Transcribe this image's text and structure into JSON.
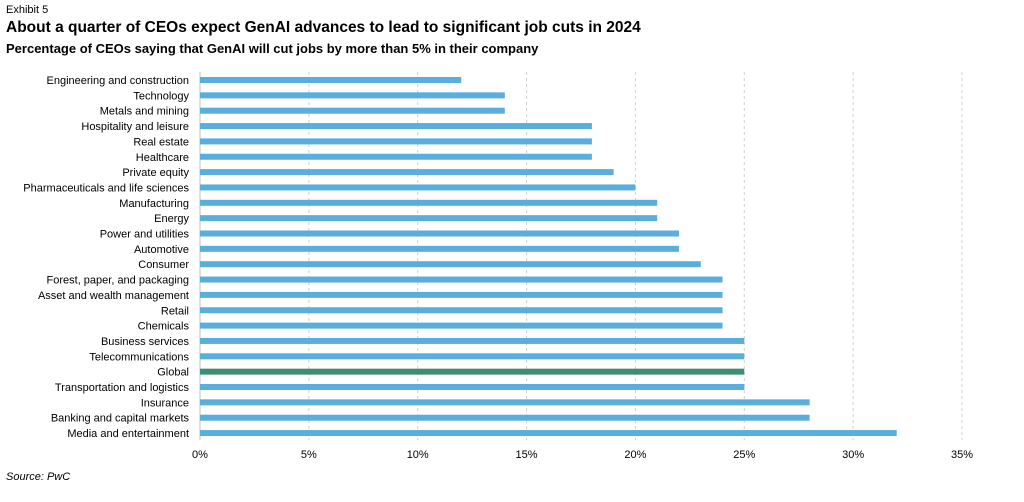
{
  "header": {
    "exhibit": "Exhibit 5",
    "title": "About a quarter of CEOs expect GenAI advances to lead to significant job cuts in 2024",
    "subtitle": "Percentage of CEOs saying that GenAI will cut jobs by more than 5% in their company"
  },
  "footer": {
    "source": "Source: PwC"
  },
  "chart_data": {
    "type": "bar",
    "orientation": "horizontal",
    "categories": [
      "Engineering and construction",
      "Technology",
      "Metals and mining",
      "Hospitality and leisure",
      "Real estate",
      "Healthcare",
      "Private equity",
      "Pharmaceuticals and life sciences",
      "Manufacturing",
      "Energy",
      "Power and utilities",
      "Automotive",
      "Consumer",
      "Forest, paper, and packaging",
      "Asset and wealth management",
      "Retail",
      "Chemicals",
      "Business services",
      "Telecommunications",
      "Global",
      "Transportation and logistics",
      "Insurance",
      "Banking and capital markets",
      "Media and entertainment"
    ],
    "values": [
      12,
      14,
      14,
      18,
      18,
      18,
      19,
      20,
      21,
      21,
      22,
      22,
      23,
      24,
      24,
      24,
      24,
      25,
      25,
      25,
      25,
      28,
      28,
      32
    ],
    "highlight_category": "Global",
    "xlim": [
      0,
      35
    ],
    "xticks": [
      0,
      5,
      10,
      15,
      20,
      25,
      30,
      35
    ],
    "tick_labels": [
      "0%",
      "5%",
      "10%",
      "15%",
      "20%",
      "25%",
      "30%",
      "35%"
    ],
    "grid": "vertical dashed",
    "colors": {
      "bar": "#5aaedd",
      "highlight": "#3e8e72",
      "grid": "#d0d0d0"
    }
  }
}
